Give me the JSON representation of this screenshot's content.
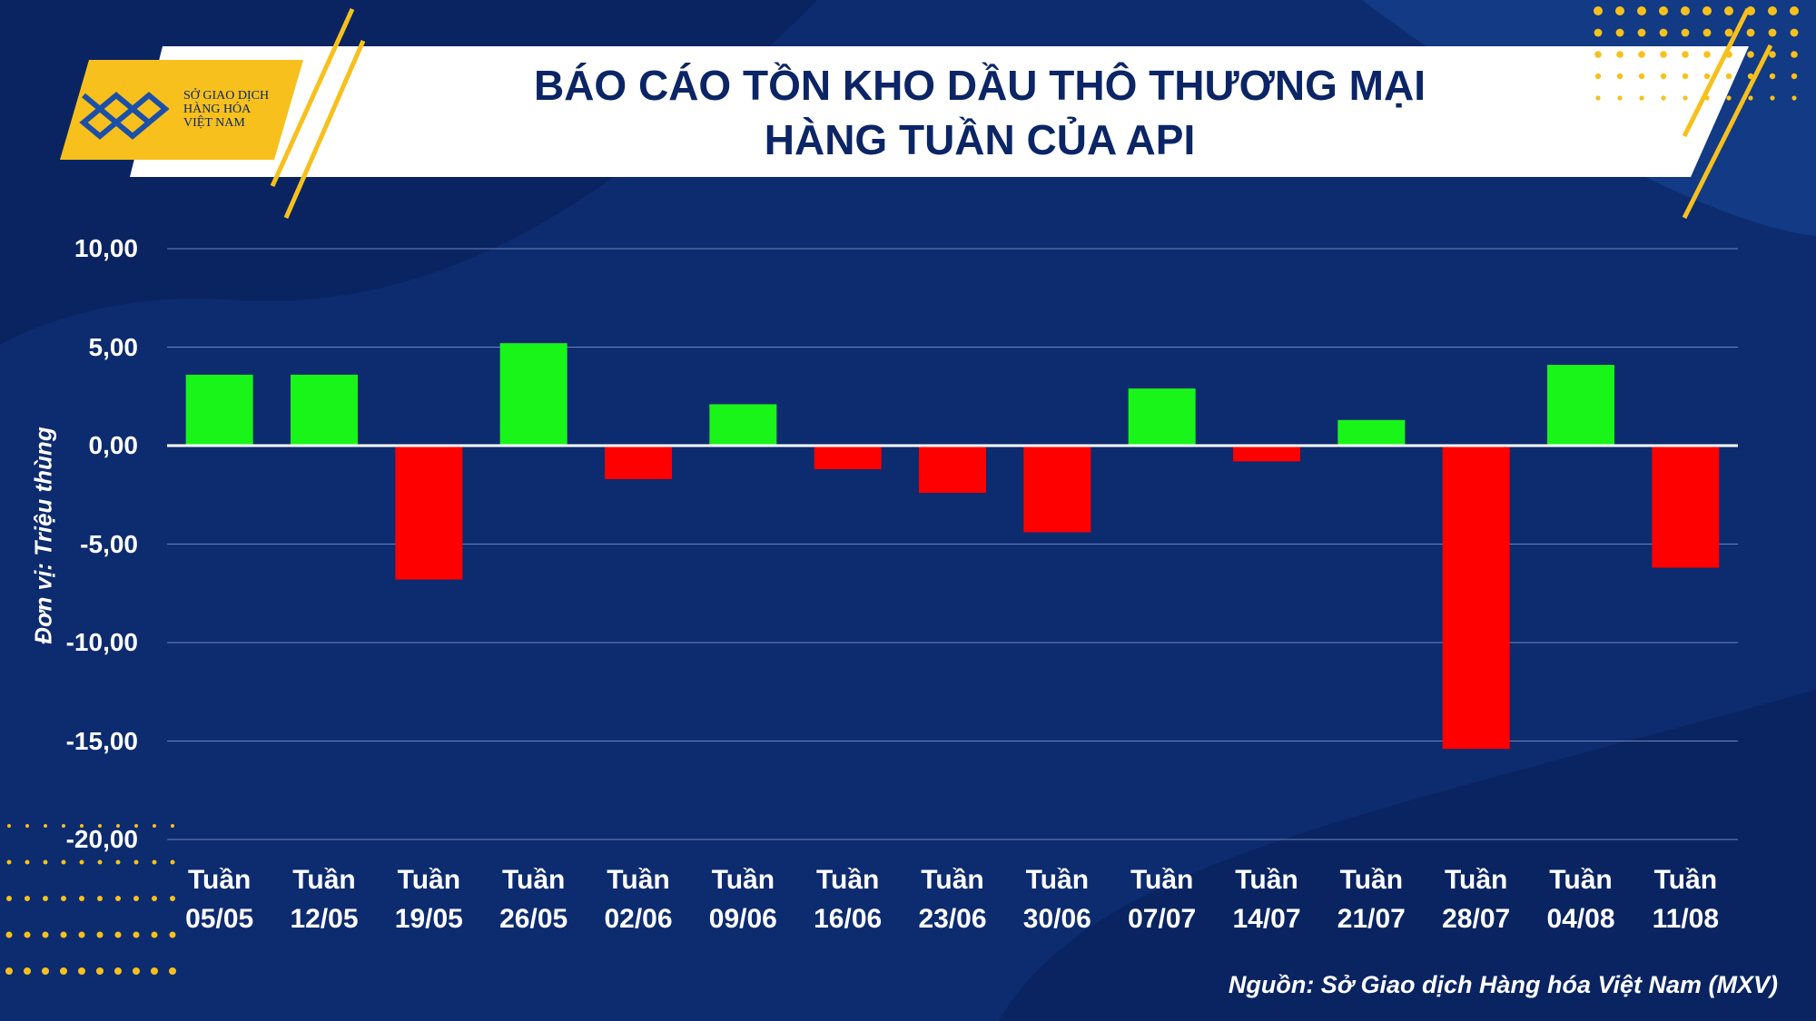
{
  "logo_text": "SỞ GIAO DỊCH\nHÀNG HÓA\nVIỆT NAM",
  "source": "Nguồn: Sở Giao dịch Hàng hóa Việt Nam (MXV)",
  "chart_data": {
    "type": "bar",
    "title": "BÁO CÁO TỒN KHO DẦU THÔ THƯƠNG MẠI\nHÀNG TUẦN CỦA API",
    "y_label": "Đơn vị: Triệu thùng",
    "categories": [
      "Tuần\n05/05",
      "Tuần\n12/05",
      "Tuần\n19/05",
      "Tuần\n26/05",
      "Tuần\n02/06",
      "Tuần\n09/06",
      "Tuần\n16/06",
      "Tuần\n23/06",
      "Tuần\n30/06",
      "Tuần\n07/07",
      "Tuần\n14/07",
      "Tuần\n21/07",
      "Tuần\n28/07",
      "Tuần\n04/08",
      "Tuần\n11/08"
    ],
    "values": [
      3.6,
      3.6,
      -6.8,
      5.2,
      -1.7,
      2.1,
      -1.2,
      -2.4,
      -4.4,
      2.9,
      -0.8,
      1.3,
      -15.4,
      4.1,
      -6.2
    ],
    "positive_color": "#19f519",
    "negative_color": "#ff0000",
    "ylim": [
      -20,
      10
    ],
    "yticks": [
      {
        "value": 10,
        "label": "10,00"
      },
      {
        "value": 5,
        "label": "5,00"
      },
      {
        "value": 0,
        "label": "0,00"
      },
      {
        "value": -5,
        "label": "-5,00"
      },
      {
        "value": -10,
        "label": "-10,00"
      },
      {
        "value": -15,
        "label": "-15,00"
      },
      {
        "value": -20,
        "label": "-20,00"
      }
    ],
    "grid": true
  }
}
